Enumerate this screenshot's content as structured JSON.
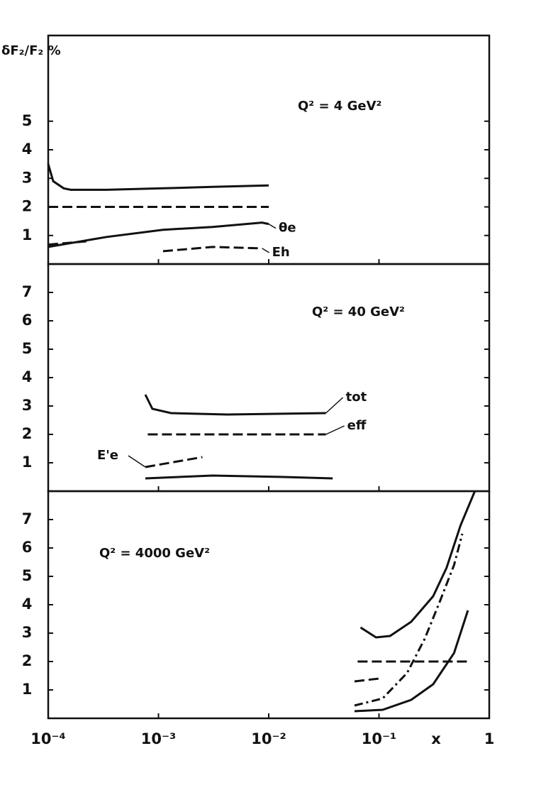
{
  "chart_data": [
    {
      "type": "line",
      "ylabel": "δF₂/F₂ %",
      "annotation": "Q² = 4 GeV²",
      "xscale": "log",
      "xlim": [
        0.0001,
        1
      ],
      "ylim": [
        0,
        8
      ],
      "yticks": [
        1,
        2,
        3,
        4,
        5
      ],
      "grid": false,
      "series": [
        {
          "color": "#111",
          "style": "solid",
          "x": [
            0.0001,
            0.000111,
            0.000138,
            0.00016,
            0.00034,
            0.0011,
            0.0031,
            0.01
          ],
          "values": [
            3.5,
            2.9,
            2.65,
            2.6,
            2.6,
            2.65,
            2.7,
            2.75
          ]
        },
        {
          "color": "#111",
          "style": "dashed",
          "x": [
            0.0001,
            0.01
          ],
          "values": [
            2.0,
            2.0
          ]
        },
        {
          "name": "θe",
          "color": "#111",
          "style": "solid",
          "x": [
            0.0001,
            0.00034,
            0.0011,
            0.0031,
            0.0087,
            0.01
          ],
          "values": [
            0.6,
            0.95,
            1.2,
            1.3,
            1.45,
            1.4
          ]
        },
        {
          "name": "Eh",
          "color": "#111",
          "style": "dashed",
          "x": [
            0.0001,
            0.00023,
            0.0002,
            0.0011,
            0.0031,
            0.0087
          ],
          "values": [
            0.68,
            0.8,
            null,
            0.45,
            0.6,
            0.55
          ]
        }
      ]
    },
    {
      "type": "line",
      "annotation": "Q² = 40 GeV²",
      "xscale": "log",
      "xlim": [
        0.0001,
        1
      ],
      "ylim": [
        0,
        8
      ],
      "yticks": [
        1,
        2,
        3,
        4,
        5,
        6,
        7
      ],
      "grid": false,
      "series": [
        {
          "name": "tot",
          "color": "#111",
          "style": "solid",
          "x": [
            0.00076,
            0.00088,
            0.0013,
            0.0042,
            0.033
          ],
          "values": [
            3.4,
            2.9,
            2.75,
            2.7,
            2.75
          ]
        },
        {
          "name": "eff",
          "color": "#111",
          "style": "dashed",
          "x": [
            0.0008,
            0.033
          ],
          "values": [
            2.0,
            2.0
          ]
        },
        {
          "name": "E'e",
          "color": "#111",
          "style": "dashed",
          "x": [
            0.00076,
            0.0025
          ],
          "values": [
            0.85,
            1.2
          ]
        },
        {
          "color": "#111",
          "style": "solid",
          "x": [
            0.00076,
            0.0031,
            0.0136,
            0.038
          ],
          "values": [
            0.45,
            0.55,
            0.5,
            0.45
          ]
        }
      ]
    },
    {
      "type": "line",
      "annotation": "Q² = 4000 GeV²",
      "xscale": "log",
      "xlabel": "x",
      "xlim": [
        0.0001,
        1
      ],
      "ylim": [
        0,
        8
      ],
      "yticks": [
        1,
        2,
        3,
        4,
        5,
        6,
        7
      ],
      "grid": false,
      "xticks": [
        {
          "value": 0.0001,
          "label": "10⁻⁴"
        },
        {
          "value": 0.001,
          "label": "10⁻³"
        },
        {
          "value": 0.01,
          "label": "10⁻²"
        },
        {
          "value": 0.1,
          "label": "10⁻¹"
        },
        1
      ],
      "series": [
        {
          "color": "#111",
          "style": "solid",
          "x": [
            0.068,
            0.094,
            0.126,
            0.196,
            0.31,
            0.41,
            0.55,
            0.74
          ],
          "values": [
            3.2,
            2.85,
            2.9,
            3.4,
            4.3,
            5.3,
            6.8,
            8.0
          ]
        },
        {
          "color": "#111",
          "style": "dashed",
          "x": [
            0.064,
            0.64
          ],
          "values": [
            2.0,
            2.0
          ]
        },
        {
          "color": "#111",
          "style": "dashed",
          "x": [
            0.06,
            0.1
          ],
          "values": [
            1.3,
            1.4
          ]
        },
        {
          "color": "#111",
          "style": "dashdot",
          "x": [
            0.06,
            0.108,
            0.18,
            0.26,
            0.355,
            0.48,
            0.57
          ],
          "values": [
            0.45,
            0.7,
            1.6,
            2.8,
            4.1,
            5.4,
            6.5
          ]
        },
        {
          "color": "#111",
          "style": "solid",
          "x": [
            0.06,
            0.108,
            0.196,
            0.31,
            0.48,
            0.64
          ],
          "values": [
            0.25,
            0.3,
            0.65,
            1.2,
            2.3,
            3.8
          ]
        }
      ]
    }
  ]
}
